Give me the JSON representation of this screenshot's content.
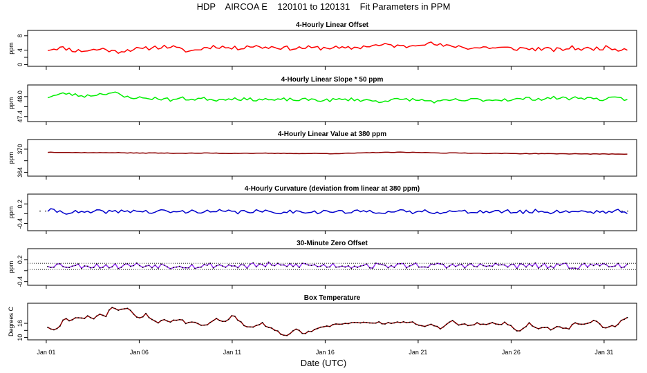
{
  "figure": {
    "title": "HDP    AIRCOA E    120101 to 120131    Fit Parameters in PPM",
    "xlabel": "Date (UTC)",
    "x_ticks": [
      {
        "day": 1,
        "label": "Jan 01"
      },
      {
        "day": 6,
        "label": "Jan 06"
      },
      {
        "day": 11,
        "label": "Jan 11"
      },
      {
        "day": 16,
        "label": "Jan 16"
      },
      {
        "day": 21,
        "label": "Jan 21"
      },
      {
        "day": 26,
        "label": "Jan 26"
      },
      {
        "day": 31,
        "label": "Jan 31"
      }
    ],
    "x_range_days": [
      0.0,
      32.75
    ]
  },
  "chart_data": [
    {
      "type": "line",
      "title": "4-Hourly Linear Offset",
      "ylabel": "ppm",
      "ylim": [
        -0.5,
        9.5
      ],
      "yticks": [
        0,
        4,
        8
      ],
      "ytick_labels": [
        "0",
        "4",
        "8"
      ],
      "color": "#ff0000",
      "markers": false,
      "x_start_day": 1.08,
      "x_end_day": 32.25,
      "samples": [
        4.2,
        4.6,
        4.5,
        3.8,
        3.9,
        4.1,
        4.4,
        3.5,
        3.9,
        4.3,
        4.2,
        4.8,
        4.9,
        5.0,
        4.1,
        3.7,
        4.3,
        4.9,
        5.1,
        4.6,
        4.5,
        5.2,
        5.0,
        4.8,
        4.9,
        4.6,
        4.5,
        4.7,
        4.6,
        4.6,
        4.8,
        4.4,
        4.6,
        4.9,
        5.3,
        5.3,
        5.5,
        5.0,
        5.1,
        5.9,
        5.9,
        5.5,
        5.0,
        5.2,
        4.7,
        4.6,
        4.8,
        4.6,
        4.6,
        4.4,
        4.5,
        4.3,
        4.4,
        4.1,
        4.1,
        4.7,
        4.4,
        4.3,
        4.6,
        4.7,
        4.3,
        4.4
      ],
      "noise": 0.6,
      "seed": 11
    },
    {
      "type": "line",
      "title": "4-Hourly Linear Slope * 50 ppm",
      "ylabel": "ppm",
      "ylim": [
        47.25,
        48.35
      ],
      "yticks": [
        47.4,
        48.0
      ],
      "ytick_labels": [
        "47.4",
        "48.0"
      ],
      "color": "#00ee00",
      "markers": false,
      "x_start_day": 1.08,
      "x_end_day": 32.25,
      "samples": [
        47.99,
        48.05,
        48.1,
        48.04,
        48.02,
        48.06,
        48.1,
        48.12,
        47.99,
        47.98,
        47.95,
        47.95,
        47.94,
        47.9,
        47.95,
        47.92,
        47.94,
        47.93,
        47.9,
        47.95,
        47.94,
        47.91,
        47.92,
        47.92,
        47.88,
        47.92,
        47.9,
        47.9,
        47.92,
        47.88,
        47.9,
        47.91,
        47.92,
        47.9,
        47.88,
        47.85,
        47.91,
        47.9,
        47.92,
        47.89,
        47.88,
        47.84,
        47.87,
        47.9,
        47.88,
        47.92,
        47.9,
        47.9,
        47.92,
        47.9,
        47.94,
        47.94,
        47.93,
        47.96,
        47.96,
        47.94,
        47.98,
        47.95,
        47.92,
        47.93,
        47.95,
        47.9
      ],
      "noise": 0.05,
      "seed": 23
    },
    {
      "type": "line",
      "title": "4-Hourly Linear Value at 380 ppm",
      "ylabel": "ppm",
      "ylim": [
        363.0,
        372.5
      ],
      "yticks": [
        364,
        370
      ],
      "ytick_labels": [
        "364",
        "370"
      ],
      "color": "#8b0000",
      "markers": false,
      "x_start_day": 1.08,
      "x_end_day": 32.25,
      "samples": [
        369.2,
        369.2,
        369.15,
        369.1,
        369.1,
        369.05,
        369.1,
        369.1,
        369.05,
        369.0,
        369.0,
        369.0,
        369.0,
        368.95,
        368.95,
        368.95,
        368.95,
        369.0,
        368.95,
        368.9,
        368.95,
        368.95,
        368.9,
        368.95,
        368.9,
        368.9,
        368.9,
        368.85,
        368.9,
        368.85,
        368.85,
        368.9,
        368.95,
        369.0,
        369.1,
        369.15,
        369.15,
        369.2,
        369.15,
        369.15,
        369.1,
        369.05,
        369.0,
        369.0,
        369.0,
        368.95,
        368.9,
        368.9,
        368.9,
        368.85,
        368.85,
        368.85,
        368.85,
        368.8,
        368.8,
        368.8,
        368.8,
        368.75,
        368.75,
        368.75,
        368.75,
        368.75
      ],
      "noise": 0.06,
      "seed": 37
    },
    {
      "type": "line",
      "title": "4-Hourly Curvature (deviation from linear at 380 ppm)",
      "ylabel": "ppm",
      "ylim": [
        -0.62,
        0.5
      ],
      "yticks": [
        -0.4,
        0.2
      ],
      "ytick_labels": [
        "-0.4",
        "0.2"
      ],
      "color": "#0000cc",
      "markers": false,
      "x_start_day": 1.08,
      "x_end_day": 32.25,
      "samples": [
        0.0,
        -0.02,
        -0.06,
        -0.05,
        -0.08,
        -0.04,
        -0.03,
        -0.05,
        -0.02,
        -0.01,
        -0.03,
        -0.06,
        -0.02,
        -0.04,
        -0.05,
        -0.03,
        -0.02,
        -0.05,
        -0.03,
        -0.04,
        -0.06,
        -0.02,
        -0.03,
        -0.05,
        -0.06,
        -0.03,
        -0.04,
        -0.02,
        -0.05,
        -0.04,
        -0.03,
        -0.05,
        -0.06,
        -0.03,
        -0.02,
        -0.04,
        -0.05,
        -0.03,
        -0.06,
        -0.04,
        -0.02,
        -0.05,
        -0.03,
        -0.04,
        -0.05,
        -0.02,
        -0.04,
        -0.05,
        -0.03,
        -0.04,
        -0.06,
        -0.02,
        -0.03,
        -0.05,
        -0.02,
        -0.04,
        -0.01,
        -0.05,
        -0.03,
        -0.04,
        -0.02,
        -0.08
      ],
      "noise": 0.06,
      "seed": 41,
      "reference_dots": [
        -0.02,
        0.0
      ]
    },
    {
      "type": "line",
      "title": "30-Minute Zero Offset",
      "ylabel": "ppm",
      "ylim": [
        -0.5,
        0.5
      ],
      "yticks": [
        -0.4,
        0.2
      ],
      "ytick_labels": [
        "-0.4",
        "0.2"
      ],
      "color": "#9933ff",
      "markers": true,
      "x_start_day": 1.08,
      "x_end_day": 32.25,
      "samples": [
        0.05,
        0.06,
        0.04,
        0.02,
        0.05,
        0.03,
        0.04,
        0.02,
        0.04,
        0.06,
        0.03,
        0.05,
        0.04,
        0.02,
        0.05,
        0.03,
        0.02,
        0.04,
        0.05,
        0.03,
        0.04,
        0.02,
        0.05,
        0.06,
        0.03,
        0.04,
        0.05,
        0.06,
        0.04,
        0.03,
        0.05,
        0.04,
        0.03,
        0.05,
        0.04,
        0.02,
        0.05,
        0.03,
        0.04,
        0.06,
        0.04,
        0.03,
        0.02,
        0.04,
        0.05,
        0.03,
        0.02,
        0.04,
        0.05,
        0.03,
        0.02,
        0.04,
        0.03,
        0.01,
        0.02,
        0.03,
        0.02,
        0.04,
        0.05,
        0.08,
        0.06,
        0.02
      ],
      "noise": 0.08,
      "seed": 53,
      "reference_lines": [
        0.1,
        -0.07
      ]
    },
    {
      "type": "line",
      "title": "Box Temperature",
      "ylabel": "Degrees C",
      "ylim": [
        9.0,
        24.5
      ],
      "yticks": [
        10,
        16
      ],
      "ytick_labels": [
        "10",
        "16"
      ],
      "color": "#8b0000",
      "markers": true,
      "x_start_day": 1.08,
      "x_end_day": 32.25,
      "samples": [
        14.5,
        13.0,
        14.8,
        18.5,
        17.0,
        18.8,
        18.0,
        19.2,
        17.6,
        20.0,
        19.0,
        23.0,
        22.0,
        21.5,
        23.0,
        19.0,
        18.0,
        20.0,
        17.5,
        16.5,
        18.0,
        16.5,
        17.5,
        18.0,
        15.8,
        17.0,
        16.0,
        15.0,
        16.0,
        18.5,
        17.0,
        16.8,
        20.0,
        17.0,
        15.0,
        14.0,
        15.5,
        16.0,
        14.0,
        13.5,
        12.0,
        10.5,
        12.0,
        13.5,
        11.5,
        12.5,
        13.0,
        14.0,
        14.5,
        15.0,
        15.5,
        16.0,
        16.0,
        16.2,
        16.5,
        16.0,
        16.0,
        16.3,
        16.0,
        16.0,
        16.2,
        16.5,
        16.0,
        16.5,
        15.5,
        14.5,
        15.8,
        15.0,
        13.5,
        16.0,
        17.0,
        15.0,
        16.0,
        14.8,
        16.5,
        15.5,
        16.0,
        16.2,
        15.0,
        16.5,
        14.5,
        12.5,
        13.5,
        16.0,
        14.0,
        13.5,
        15.0,
        13.0,
        14.5,
        13.5,
        14.0,
        16.5,
        15.5,
        16.0,
        17.0,
        16.5,
        13.5,
        15.0,
        14.5,
        17.5,
        18.5
      ],
      "noise": 0.4,
      "seed": 67
    }
  ]
}
